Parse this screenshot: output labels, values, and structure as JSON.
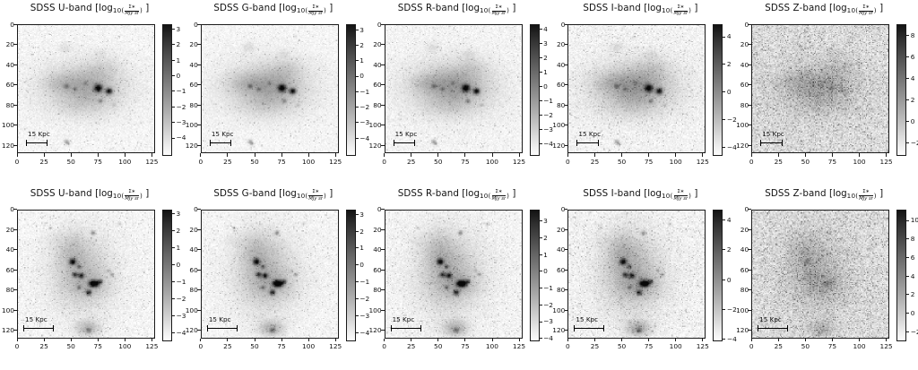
{
  "chart_data": {
    "type": "heatmap",
    "title": "SDSS band surface-brightness maps (2 galaxies x 5 bands, log10 scale, Greys colormap)",
    "grid": {
      "rows": 2,
      "cols": 5
    },
    "axis_range": [
      0,
      128
    ],
    "x_ticks": [
      0,
      25,
      50,
      75,
      100,
      125
    ],
    "y_ticks": [
      0,
      20,
      40,
      60,
      80,
      100,
      120
    ],
    "grid_lines": false,
    "colorbar_position": "right",
    "scalebar_label": "15 Kpc",
    "scalebars": [
      {
        "x0": 7.5,
        "x1": 26.5,
        "y": 117,
        "label_y": 106
      },
      {
        "x0": 5.0,
        "x1": 32.0,
        "y": 117,
        "label_y": 106
      }
    ],
    "math": {
      "open": " [log",
      "sub_open": "10(",
      "numerator": "Σ∗",
      "denominator": "MJy sr",
      "sub_close": ")",
      "close": " ]"
    },
    "panels": [
      {
        "row": 0,
        "band_label": "SDSS U-band",
        "title": "SDSS U-band [log10(Σ*/MJy sr)]",
        "galaxy": "galaxy1",
        "cbar": {
          "ticks": [
            3,
            2,
            1,
            0,
            -1,
            -2,
            -3,
            -4
          ],
          "vmin": -5.15,
          "vmax": 3.3
        },
        "noise": {
          "base": 245,
          "amp": 11,
          "speck": 0.05,
          "speckAmp": 55
        },
        "render": {
          "diffuse": 0.92,
          "knots": 1.0,
          "k": 150
        }
      },
      {
        "row": 0,
        "band_label": "SDSS G-band",
        "title": "SDSS G-band [log10(Σ*/MJy sr)]",
        "galaxy": "galaxy1",
        "cbar": {
          "ticks": [
            3,
            2,
            1,
            0,
            -1,
            -2,
            -3,
            -4
          ],
          "vmin": -5.15,
          "vmax": 3.35
        },
        "noise": {
          "base": 245,
          "amp": 10,
          "speck": 0.05,
          "speckAmp": 55
        },
        "render": {
          "diffuse": 1.0,
          "knots": 1.0,
          "k": 150
        }
      },
      {
        "row": 0,
        "band_label": "SDSS R-band",
        "title": "SDSS R-band [log10(Σ*/MJy sr)]",
        "galaxy": "galaxy1",
        "cbar": {
          "ticks": [
            4,
            3,
            2,
            1,
            0,
            -1,
            -2,
            -3,
            -4
          ],
          "vmin": -4.85,
          "vmax": 4.35
        },
        "noise": {
          "base": 244,
          "amp": 11,
          "speck": 0.06,
          "speckAmp": 55
        },
        "render": {
          "diffuse": 1.05,
          "knots": 1.0,
          "k": 150
        }
      },
      {
        "row": 0,
        "band_label": "SDSS I-band",
        "title": "SDSS I-band [log10(Σ*/MJy sr)]",
        "galaxy": "galaxy1",
        "cbar": {
          "ticks": [
            4,
            2,
            0,
            -2,
            -4
          ],
          "vmin": -4.6,
          "vmax": 4.9
        },
        "noise": {
          "base": 243,
          "amp": 13,
          "speck": 0.08,
          "speckAmp": 60
        },
        "render": {
          "diffuse": 1.1,
          "knots": 0.95,
          "k": 150
        }
      },
      {
        "row": 0,
        "band_label": "SDSS Z-band",
        "title": "SDSS Z-band [log10(Σ*/MJy sr)]",
        "galaxy": "galaxy1",
        "cbar": {
          "ticks": [
            8,
            6,
            4,
            2,
            0,
            -2
          ],
          "vmin": -3.2,
          "vmax": 9.0
        },
        "noise": {
          "base": 222,
          "amp": 24,
          "speck": 0.2,
          "speckAmp": 80
        },
        "render": {
          "diffuse": 0.9,
          "knots": 0.22,
          "k": 120
        }
      },
      {
        "row": 1,
        "band_label": "SDSS U-band",
        "title": "SDSS U-band [log10(Σ*/MJy sr)]",
        "galaxy": "galaxy2",
        "cbar": {
          "ticks": [
            3,
            2,
            1,
            0,
            -1,
            -2,
            -3,
            -4
          ],
          "vmin": -4.5,
          "vmax": 3.25
        },
        "noise": {
          "base": 245,
          "amp": 12,
          "speck": 0.07,
          "speckAmp": 55
        },
        "render": {
          "diffuse": 0.92,
          "knots": 1.0,
          "k": 150
        }
      },
      {
        "row": 1,
        "band_label": "SDSS G-band",
        "title": "SDSS G-band [log10(Σ*/MJy sr)]",
        "galaxy": "galaxy2",
        "cbar": {
          "ticks": [
            3,
            2,
            1,
            0,
            -1,
            -2,
            -3,
            -4
          ],
          "vmin": -4.5,
          "vmax": 3.3
        },
        "noise": {
          "base": 245,
          "amp": 11,
          "speck": 0.07,
          "speckAmp": 55
        },
        "render": {
          "diffuse": 1.0,
          "knots": 1.0,
          "k": 150
        }
      },
      {
        "row": 1,
        "band_label": "SDSS R-band",
        "title": "SDSS R-band [log10(Σ*/MJy sr)]",
        "galaxy": "galaxy2",
        "cbar": {
          "ticks": [
            3,
            2,
            1,
            0,
            -1,
            -2,
            -3,
            -4
          ],
          "vmin": -4.15,
          "vmax": 3.7
        },
        "noise": {
          "base": 244,
          "amp": 12,
          "speck": 0.08,
          "speckAmp": 55
        },
        "render": {
          "diffuse": 1.05,
          "knots": 1.0,
          "k": 150
        }
      },
      {
        "row": 1,
        "band_label": "SDSS I-band",
        "title": "SDSS I-band [log10(Σ*/MJy sr)]",
        "galaxy": "galaxy2",
        "cbar": {
          "ticks": [
            4,
            2,
            0,
            -2,
            -4
          ],
          "vmin": -4.1,
          "vmax": 4.7
        },
        "noise": {
          "base": 243,
          "amp": 14,
          "speck": 0.1,
          "speckAmp": 60
        },
        "render": {
          "diffuse": 1.1,
          "knots": 0.95,
          "k": 150
        }
      },
      {
        "row": 1,
        "band_label": "SDSS Z-band",
        "title": "SDSS Z-band [log10(Σ*/MJy sr)]",
        "galaxy": "galaxy2",
        "cbar": {
          "ticks": [
            10,
            8,
            6,
            4,
            2,
            0,
            -2
          ],
          "vmin": -3.0,
          "vmax": 11.2
        },
        "noise": {
          "base": 222,
          "amp": 24,
          "speck": 0.2,
          "speckAmp": 80
        },
        "render": {
          "diffuse": 0.9,
          "knots": 0.22,
          "k": 120
        }
      }
    ],
    "galaxies": {
      "galaxy1": {
        "morphology": "elongated irregular disk, two bright central knots, faint companion lower-left",
        "diffuse": [
          {
            "x": 62,
            "y": 62,
            "sx": 30,
            "sy": 19,
            "a": 0.3
          },
          {
            "x": 66,
            "y": 60,
            "sx": 16,
            "sy": 11,
            "a": 0.26
          },
          {
            "x": 40,
            "y": 58,
            "sx": 12,
            "sy": 7,
            "a": 0.18
          },
          {
            "x": 80,
            "y": 42,
            "sx": 10,
            "sy": 8,
            "a": 0.12
          },
          {
            "x": 60,
            "y": 80,
            "sx": 18,
            "sy": 9,
            "a": 0.12
          },
          {
            "x": 44,
            "y": 22,
            "sx": 4,
            "sy": 3.5,
            "a": 0.14
          },
          {
            "x": 77,
            "y": 28,
            "sx": 3.5,
            "sy": 3,
            "a": 0.1
          }
        ],
        "knots": [
          {
            "x": 75,
            "y": 63,
            "r": 2.6,
            "a": 1.35
          },
          {
            "x": 85,
            "y": 66,
            "r": 2.2,
            "a": 1.25
          },
          {
            "x": 45,
            "y": 61,
            "r": 1.6,
            "a": 0.45
          },
          {
            "x": 53,
            "y": 64,
            "r": 1.4,
            "a": 0.4
          },
          {
            "x": 77,
            "y": 76,
            "r": 1.5,
            "a": 0.45
          },
          {
            "x": 63,
            "y": 58,
            "r": 1.3,
            "a": 0.3
          },
          {
            "x": 90,
            "y": 80,
            "r": 1.2,
            "a": 0.25
          },
          {
            "x": 45,
            "y": 117,
            "r": 1.5,
            "a": 0.55
          },
          {
            "x": 47,
            "y": 119,
            "r": 1.2,
            "a": 0.45
          }
        ]
      },
      "galaxy2": {
        "morphology": "clumpy irregular galaxy elongated N-S with many star-forming knots, companion blob at bottom center",
        "diffuse": [
          {
            "x": 58,
            "y": 60,
            "sx": 17,
            "sy": 25,
            "a": 0.28
          },
          {
            "x": 62,
            "y": 66,
            "sx": 26,
            "sy": 30,
            "a": 0.13
          },
          {
            "x": 49,
            "y": 40,
            "sx": 9,
            "sy": 13,
            "a": 0.18
          },
          {
            "x": 68,
            "y": 74,
            "sx": 13,
            "sy": 9,
            "a": 0.18
          },
          {
            "x": 65,
            "y": 118,
            "sx": 8,
            "sy": 5.5,
            "a": 0.42
          },
          {
            "x": 30,
            "y": 30,
            "sx": 6,
            "sy": 5,
            "a": 0.07
          }
        ],
        "knots": [
          {
            "x": 51,
            "y": 51,
            "r": 2.2,
            "a": 1.2
          },
          {
            "x": 57,
            "y": 56,
            "r": 1.5,
            "a": 0.6
          },
          {
            "x": 53,
            "y": 64,
            "r": 1.8,
            "a": 0.9
          },
          {
            "x": 59,
            "y": 65,
            "r": 1.9,
            "a": 1.0
          },
          {
            "x": 69,
            "y": 73,
            "r": 2.2,
            "a": 1.25
          },
          {
            "x": 73,
            "y": 73,
            "r": 2.3,
            "a": 1.3
          },
          {
            "x": 77,
            "y": 71,
            "r": 1.6,
            "a": 0.7
          },
          {
            "x": 66,
            "y": 82,
            "r": 1.9,
            "a": 1.0
          },
          {
            "x": 57,
            "y": 77,
            "r": 1.4,
            "a": 0.5
          },
          {
            "x": 70,
            "y": 22,
            "r": 1.5,
            "a": 0.6
          },
          {
            "x": 88,
            "y": 64,
            "r": 1.3,
            "a": 0.45
          },
          {
            "x": 84,
            "y": 60,
            "r": 1.1,
            "a": 0.3
          },
          {
            "x": 95,
            "y": 13,
            "r": 1.2,
            "a": 0.3
          },
          {
            "x": 30,
            "y": 17,
            "r": 1.1,
            "a": 0.3
          },
          {
            "x": 66,
            "y": 120,
            "r": 1.8,
            "a": 0.5
          }
        ]
      }
    }
  }
}
